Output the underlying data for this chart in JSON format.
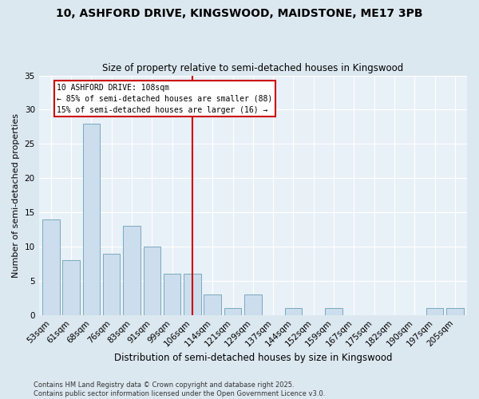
{
  "title1": "10, ASHFORD DRIVE, KINGSWOOD, MAIDSTONE, ME17 3PB",
  "title2": "Size of property relative to semi-detached houses in Kingswood",
  "xlabel": "Distribution of semi-detached houses by size in Kingswood",
  "ylabel": "Number of semi-detached properties",
  "categories": [
    "53sqm",
    "61sqm",
    "68sqm",
    "76sqm",
    "83sqm",
    "91sqm",
    "99sqm",
    "106sqm",
    "114sqm",
    "121sqm",
    "129sqm",
    "137sqm",
    "144sqm",
    "152sqm",
    "159sqm",
    "167sqm",
    "175sqm",
    "182sqm",
    "190sqm",
    "197sqm",
    "205sqm"
  ],
  "values": [
    14,
    8,
    28,
    9,
    13,
    10,
    6,
    6,
    3,
    1,
    3,
    0,
    1,
    0,
    1,
    0,
    0,
    0,
    0,
    1,
    1
  ],
  "bar_color": "#ccdded",
  "bar_edge_color": "#7aaabb",
  "vline_color": "#cc0000",
  "annotation_title": "10 ASHFORD DRIVE: 108sqm",
  "annotation_line1": "← 85% of semi-detached houses are smaller (88)",
  "annotation_line2": "15% of semi-detached houses are larger (16) →",
  "footnote1": "Contains HM Land Registry data © Crown copyright and database right 2025.",
  "footnote2": "Contains public sector information licensed under the Open Government Licence v3.0.",
  "ylim": [
    0,
    35
  ],
  "yticks": [
    0,
    5,
    10,
    15,
    20,
    25,
    30,
    35
  ],
  "bg_color": "#dce8f0",
  "plot_bg": "#e8f0f8",
  "title1_fontsize": 10,
  "title2_fontsize": 8.5,
  "ylabel_fontsize": 8,
  "xlabel_fontsize": 8.5,
  "tick_fontsize": 7.5,
  "footnote_fontsize": 6
}
